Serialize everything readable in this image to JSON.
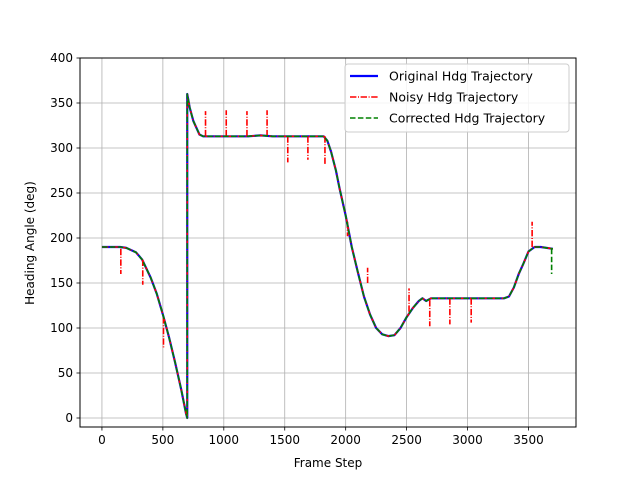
{
  "chart_data": {
    "type": "line",
    "title": "",
    "xlabel": "Frame Step",
    "ylabel": "Heading Angle (deg)",
    "xlim": [
      -180,
      3890
    ],
    "ylim": [
      -10,
      400
    ],
    "xticks": [
      0,
      500,
      1000,
      1500,
      2000,
      2500,
      3000,
      3500
    ],
    "yticks": [
      0,
      50,
      100,
      150,
      200,
      250,
      300,
      350,
      400
    ],
    "grid": true,
    "legend_position": "top-right",
    "series": [
      {
        "name": "Original Hdg Trajectory",
        "color": "#0000ff",
        "style": "solid",
        "points": [
          [
            0,
            190
          ],
          [
            150,
            190
          ],
          [
            200,
            189
          ],
          [
            280,
            184
          ],
          [
            330,
            176
          ],
          [
            400,
            156
          ],
          [
            450,
            138
          ],
          [
            500,
            115
          ],
          [
            550,
            90
          ],
          [
            600,
            62
          ],
          [
            650,
            32
          ],
          [
            690,
            5
          ],
          [
            700,
            0
          ],
          [
            700,
            360
          ],
          [
            720,
            345
          ],
          [
            750,
            330
          ],
          [
            800,
            315
          ],
          [
            830,
            313
          ],
          [
            1000,
            313
          ],
          [
            1200,
            313
          ],
          [
            1300,
            314
          ],
          [
            1400,
            313
          ],
          [
            1500,
            313
          ],
          [
            1600,
            313
          ],
          [
            1700,
            313
          ],
          [
            1820,
            313
          ],
          [
            1850,
            308
          ],
          [
            1880,
            296
          ],
          [
            1920,
            275
          ],
          [
            1950,
            255
          ],
          [
            2000,
            225
          ],
          [
            2050,
            190
          ],
          [
            2100,
            162
          ],
          [
            2150,
            135
          ],
          [
            2200,
            115
          ],
          [
            2250,
            100
          ],
          [
            2300,
            93
          ],
          [
            2350,
            91
          ],
          [
            2400,
            92
          ],
          [
            2450,
            100
          ],
          [
            2500,
            112
          ],
          [
            2550,
            122
          ],
          [
            2600,
            130
          ],
          [
            2630,
            133
          ],
          [
            2660,
            130
          ],
          [
            2700,
            133
          ],
          [
            2800,
            133
          ],
          [
            3000,
            133
          ],
          [
            3200,
            133
          ],
          [
            3300,
            133
          ],
          [
            3340,
            135
          ],
          [
            3380,
            145
          ],
          [
            3420,
            160
          ],
          [
            3460,
            172
          ],
          [
            3500,
            185
          ],
          [
            3550,
            190
          ],
          [
            3600,
            190
          ],
          [
            3700,
            188
          ]
        ]
      },
      {
        "name": "Noisy Hdg Trajectory",
        "color": "#ff0000",
        "style": "dashdot",
        "points": [
          [
            0,
            190
          ],
          [
            150,
            190
          ],
          [
            200,
            189
          ],
          [
            280,
            184
          ],
          [
            330,
            176
          ],
          [
            400,
            156
          ],
          [
            450,
            138
          ],
          [
            500,
            115
          ],
          [
            550,
            90
          ],
          [
            600,
            62
          ],
          [
            650,
            32
          ],
          [
            690,
            5
          ],
          [
            700,
            0
          ],
          [
            700,
            360
          ],
          [
            720,
            345
          ],
          [
            750,
            330
          ],
          [
            800,
            315
          ],
          [
            830,
            313
          ],
          [
            1000,
            313
          ],
          [
            1200,
            313
          ],
          [
            1300,
            314
          ],
          [
            1400,
            313
          ],
          [
            1500,
            313
          ],
          [
            1600,
            313
          ],
          [
            1700,
            313
          ],
          [
            1820,
            313
          ],
          [
            1850,
            308
          ],
          [
            1880,
            296
          ],
          [
            1920,
            275
          ],
          [
            1950,
            255
          ],
          [
            2000,
            225
          ],
          [
            2050,
            190
          ],
          [
            2100,
            162
          ],
          [
            2150,
            135
          ],
          [
            2200,
            115
          ],
          [
            2250,
            100
          ],
          [
            2300,
            93
          ],
          [
            2350,
            91
          ],
          [
            2400,
            92
          ],
          [
            2450,
            100
          ],
          [
            2500,
            112
          ],
          [
            2550,
            122
          ],
          [
            2600,
            130
          ],
          [
            2630,
            133
          ],
          [
            2660,
            130
          ],
          [
            2700,
            133
          ],
          [
            2800,
            133
          ],
          [
            3000,
            133
          ],
          [
            3200,
            133
          ],
          [
            3300,
            133
          ],
          [
            3340,
            135
          ],
          [
            3380,
            145
          ],
          [
            3420,
            160
          ],
          [
            3460,
            172
          ],
          [
            3500,
            185
          ],
          [
            3550,
            190
          ],
          [
            3600,
            190
          ],
          [
            3700,
            188
          ]
        ],
        "spikes": [
          [
            155,
            188,
            160
          ],
          [
            335,
            176,
            148
          ],
          [
            505,
            112,
            78
          ],
          [
            850,
            313,
            341
          ],
          [
            1020,
            313,
            342
          ],
          [
            1190,
            313,
            341
          ],
          [
            1355,
            313,
            342
          ],
          [
            1525,
            313,
            284
          ],
          [
            1690,
            313,
            287
          ],
          [
            1830,
            313,
            281
          ],
          [
            2015,
            218,
            202
          ],
          [
            2180,
            150,
            167
          ],
          [
            2520,
            118,
            144
          ],
          [
            2690,
            131,
            102
          ],
          [
            2855,
            133,
            104
          ],
          [
            3030,
            133,
            106
          ],
          [
            3530,
            190,
            218
          ]
        ]
      },
      {
        "name": "Corrected Hdg Trajectory",
        "color": "#008000",
        "style": "dashed",
        "points": [
          [
            0,
            190
          ],
          [
            150,
            190
          ],
          [
            200,
            189
          ],
          [
            280,
            184
          ],
          [
            330,
            176
          ],
          [
            400,
            156
          ],
          [
            450,
            138
          ],
          [
            500,
            115
          ],
          [
            550,
            90
          ],
          [
            600,
            62
          ],
          [
            650,
            32
          ],
          [
            690,
            5
          ],
          [
            700,
            0
          ],
          [
            700,
            360
          ],
          [
            720,
            345
          ],
          [
            750,
            330
          ],
          [
            800,
            315
          ],
          [
            830,
            313
          ],
          [
            1000,
            313
          ],
          [
            1200,
            313
          ],
          [
            1300,
            314
          ],
          [
            1400,
            313
          ],
          [
            1500,
            313
          ],
          [
            1600,
            313
          ],
          [
            1700,
            313
          ],
          [
            1820,
            313
          ],
          [
            1850,
            308
          ],
          [
            1880,
            296
          ],
          [
            1920,
            275
          ],
          [
            1950,
            255
          ],
          [
            2000,
            225
          ],
          [
            2050,
            190
          ],
          [
            2100,
            162
          ],
          [
            2150,
            135
          ],
          [
            2200,
            115
          ],
          [
            2250,
            100
          ],
          [
            2300,
            93
          ],
          [
            2350,
            91
          ],
          [
            2400,
            92
          ],
          [
            2450,
            100
          ],
          [
            2500,
            112
          ],
          [
            2550,
            122
          ],
          [
            2600,
            130
          ],
          [
            2630,
            133
          ],
          [
            2660,
            130
          ],
          [
            2700,
            133
          ],
          [
            2800,
            133
          ],
          [
            3000,
            133
          ],
          [
            3200,
            133
          ],
          [
            3300,
            133
          ],
          [
            3340,
            135
          ],
          [
            3380,
            145
          ],
          [
            3420,
            160
          ],
          [
            3460,
            172
          ],
          [
            3500,
            185
          ],
          [
            3550,
            190
          ],
          [
            3600,
            190
          ],
          [
            3700,
            188
          ]
        ],
        "spikes": [
          [
            3690,
            188,
            160
          ]
        ]
      }
    ]
  }
}
